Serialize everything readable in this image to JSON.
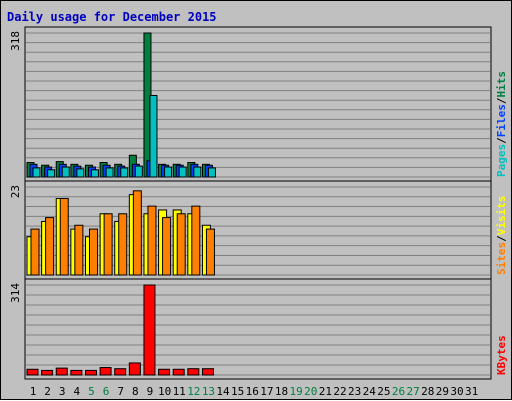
{
  "title": "Daily usage for December 2015",
  "colors": {
    "background": "#c0c0c0",
    "plot_background": "#c0c0c0",
    "gridline": "#808080",
    "title": "#0000c0",
    "hits": "#008040",
    "files": "#0040ff",
    "pages": "#00c0c0",
    "visits": "#ffff00",
    "sites": "#ff8000",
    "kbytes": "#ff0000",
    "day_normal": "#000000",
    "day_weekend": "#008040"
  },
  "chart_data": [
    {
      "type": "bar",
      "panel": "hits-files-pages",
      "ylabel_max": "318",
      "ylim": [
        0,
        318
      ],
      "legend": [
        {
          "label": "Pages",
          "color": "#00c0c0"
        },
        {
          "label": "Files",
          "color": "#0040ff"
        },
        {
          "label": "Hits",
          "color": "#008040"
        }
      ],
      "legend_separator": "/",
      "categories": [
        "1",
        "2",
        "3",
        "4",
        "5",
        "6",
        "7",
        "8",
        "9",
        "10",
        "11",
        "12",
        "13",
        "14",
        "15",
        "16",
        "17",
        "18",
        "19",
        "20",
        "21",
        "22",
        "23",
        "24",
        "25",
        "26",
        "27",
        "28",
        "29",
        "30",
        "31"
      ],
      "series": [
        {
          "name": "Hits",
          "values": [
            32,
            26,
            34,
            28,
            26,
            32,
            28,
            48,
            318,
            28,
            28,
            32,
            28,
            0,
            0,
            0,
            0,
            0,
            0,
            0,
            0,
            0,
            0,
            0,
            0,
            0,
            0,
            0,
            0,
            0,
            0
          ]
        },
        {
          "name": "Files",
          "values": [
            28,
            22,
            28,
            24,
            22,
            26,
            24,
            28,
            36,
            26,
            26,
            28,
            26,
            0,
            0,
            0,
            0,
            0,
            0,
            0,
            0,
            0,
            0,
            0,
            0,
            0,
            0,
            0,
            0,
            0,
            0
          ]
        },
        {
          "name": "Pages",
          "values": [
            20,
            16,
            22,
            18,
            16,
            20,
            20,
            24,
            180,
            22,
            22,
            22,
            20,
            0,
            0,
            0,
            0,
            0,
            0,
            0,
            0,
            0,
            0,
            0,
            0,
            0,
            0,
            0,
            0,
            0,
            0
          ]
        }
      ]
    },
    {
      "type": "bar",
      "panel": "visits-sites",
      "ylabel_max": "23",
      "ylim": [
        0,
        23
      ],
      "legend": [
        {
          "label": "Sites",
          "color": "#ff8000"
        },
        {
          "label": "Visits",
          "color": "#ffff00"
        }
      ],
      "legend_separator": "/",
      "categories": [
        "1",
        "2",
        "3",
        "4",
        "5",
        "6",
        "7",
        "8",
        "9",
        "10",
        "11",
        "12",
        "13",
        "14",
        "15",
        "16",
        "17",
        "18",
        "19",
        "20",
        "21",
        "22",
        "23",
        "24",
        "25",
        "26",
        "27",
        "28",
        "29",
        "30",
        "31"
      ],
      "series": [
        {
          "name": "Visits",
          "values": [
            10,
            14,
            20,
            12,
            10,
            16,
            14,
            21,
            16,
            17,
            17,
            16,
            13,
            0,
            0,
            0,
            0,
            0,
            0,
            0,
            0,
            0,
            0,
            0,
            0,
            0,
            0,
            0,
            0,
            0,
            0
          ]
        },
        {
          "name": "Sites",
          "values": [
            12,
            15,
            20,
            13,
            12,
            16,
            16,
            22,
            18,
            15,
            16,
            18,
            12,
            0,
            0,
            0,
            0,
            0,
            0,
            0,
            0,
            0,
            0,
            0,
            0,
            0,
            0,
            0,
            0,
            0,
            0
          ]
        }
      ]
    },
    {
      "type": "bar",
      "panel": "kbytes",
      "ylabel_max": "314",
      "ylim": [
        0,
        314
      ],
      "legend": [
        {
          "label": "KBytes",
          "color": "#ff0000"
        }
      ],
      "categories": [
        "1",
        "2",
        "3",
        "4",
        "5",
        "6",
        "7",
        "8",
        "9",
        "10",
        "11",
        "12",
        "13",
        "14",
        "15",
        "16",
        "17",
        "18",
        "19",
        "20",
        "21",
        "22",
        "23",
        "24",
        "25",
        "26",
        "27",
        "28",
        "29",
        "30",
        "31"
      ],
      "series": [
        {
          "name": "KBytes",
          "values": [
            20,
            16,
            24,
            16,
            16,
            26,
            22,
            42,
            314,
            20,
            20,
            22,
            22,
            0,
            0,
            0,
            0,
            0,
            0,
            0,
            0,
            0,
            0,
            0,
            0,
            0,
            0,
            0,
            0,
            0,
            0
          ]
        }
      ]
    }
  ],
  "x_axis": {
    "days": [
      "1",
      "2",
      "3",
      "4",
      "5",
      "6",
      "7",
      "8",
      "9",
      "10",
      "11",
      "12",
      "13",
      "14",
      "15",
      "16",
      "17",
      "18",
      "19",
      "20",
      "21",
      "22",
      "23",
      "24",
      "25",
      "26",
      "27",
      "28",
      "29",
      "30",
      "31"
    ],
    "weekend_days": [
      "5",
      "6",
      "12",
      "13",
      "19",
      "20",
      "26",
      "27"
    ]
  }
}
